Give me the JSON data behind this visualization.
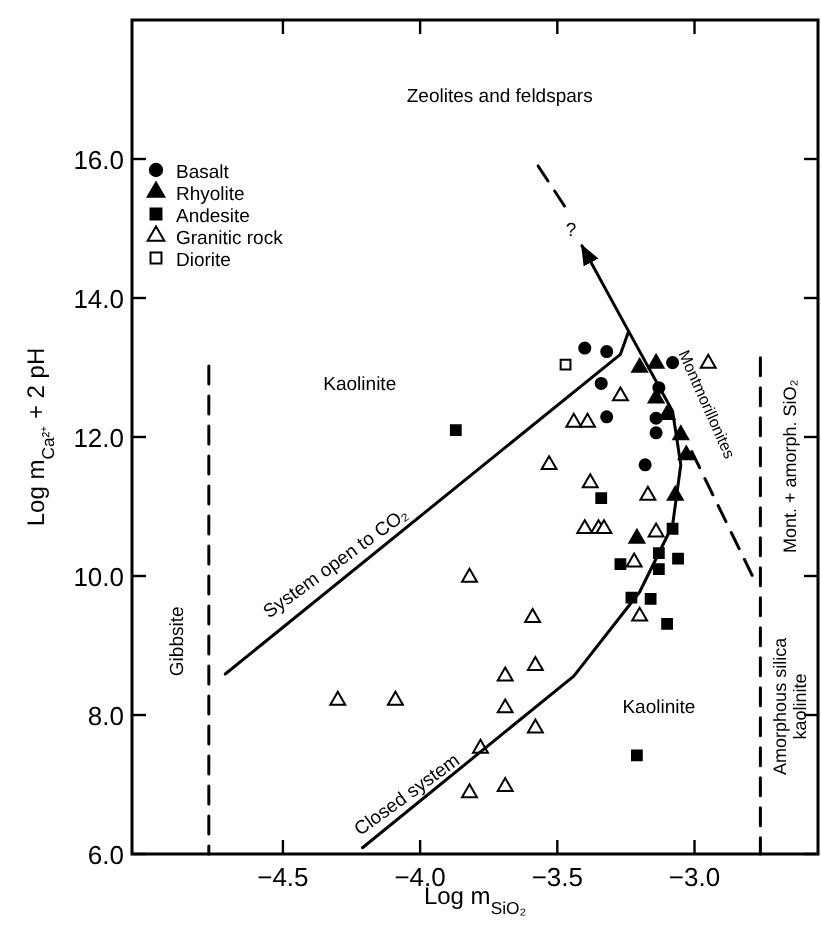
{
  "chart_data": {
    "type": "scatter",
    "xlabel": "Log m$_{SiO₂}$",
    "ylabel": "Log m$_{Ca²⁺}$ + 2 pH",
    "xlim": [
      -5.05,
      -2.55
    ],
    "ylim": [
      6,
      18
    ],
    "xticks": [
      {
        "value": -4.5,
        "label": "−4.5"
      },
      {
        "value": -4.0,
        "label": "−4.0"
      },
      {
        "value": -3.5,
        "label": "−3.5"
      },
      {
        "value": -3.0,
        "label": "−3.0"
      }
    ],
    "yticks": [
      {
        "value": 6,
        "label": "6.0"
      },
      {
        "value": 8,
        "label": "8.0"
      },
      {
        "value": 10,
        "label": "10.0"
      },
      {
        "value": 12,
        "label": "12.0"
      },
      {
        "value": 14,
        "label": "14.0"
      },
      {
        "value": 16,
        "label": "16.0"
      }
    ],
    "grid": false,
    "legend": "top left",
    "series": [
      {
        "name": "Basalt",
        "marker": "circle",
        "color": "#000000",
        "x": [
          -3.4,
          -3.32,
          -3.34,
          -3.32,
          -3.08,
          -3.13,
          -3.14,
          -3.14,
          -3.18
        ],
        "values": [
          13.28,
          13.23,
          12.77,
          12.29,
          13.07,
          12.71,
          12.27,
          12.06,
          11.6
        ]
      },
      {
        "name": "Rhyolite",
        "marker": "triangle",
        "color": "#000000",
        "x": [
          -3.2,
          -3.14,
          -3.14,
          -3.1,
          -3.05,
          -3.03,
          -3.07,
          -3.21
        ],
        "values": [
          13.0,
          13.06,
          12.56,
          12.32,
          12.03,
          11.74,
          11.16,
          10.54
        ]
      },
      {
        "name": "Andesite",
        "marker": "square",
        "color": "#000000",
        "x": [
          -3.87,
          -3.34,
          -3.08,
          -3.13,
          -3.27,
          -3.06,
          -3.13,
          -3.23,
          -3.16,
          -3.1,
          -3.21
        ],
        "values": [
          12.1,
          11.12,
          10.68,
          10.33,
          10.17,
          10.25,
          10.1,
          9.69,
          9.67,
          9.31,
          7.42
        ]
      },
      {
        "name": "Granitic rock",
        "marker": "triangle",
        "color": "#ffffff",
        "x": [
          -2.95,
          -3.27,
          -3.44,
          -3.39,
          -3.53,
          -3.38,
          -3.17,
          -3.4,
          -3.35,
          -3.33,
          -3.14,
          -3.22,
          -3.2,
          -3.82,
          -3.59,
          -3.58,
          -3.69,
          -4.3,
          -4.09,
          -3.69,
          -3.58,
          -3.78,
          -3.82,
          -3.69
        ],
        "values": [
          13.06,
          12.59,
          12.21,
          12.21,
          11.6,
          11.34,
          11.16,
          10.68,
          10.68,
          10.68,
          10.63,
          10.2,
          9.42,
          9.98,
          9.4,
          8.71,
          8.56,
          8.21,
          8.21,
          8.1,
          7.81,
          7.52,
          6.88,
          6.97
        ]
      },
      {
        "name": "Diorite",
        "marker": "square",
        "color": "#ffffff",
        "x": [
          -3.47
        ],
        "values": [
          13.04
        ]
      },
      {
        "type": "line",
        "marker": "none",
        "line_style": "solid",
        "color": "#000000",
        "x": [
          -4.71,
          -3.27,
          -3.24
        ],
        "values": [
          8.59,
          13.19,
          13.52
        ]
      },
      {
        "type": "line",
        "marker": "none",
        "line_style": "solid",
        "color": "#000000",
        "x": [
          -4.21,
          -3.44,
          -3.2,
          -3.08,
          -3.05,
          -3.08,
          -3.24,
          -3.41
        ],
        "values": [
          6.09,
          8.56,
          9.77,
          10.73,
          11.6,
          12.37,
          13.52,
          14.75
        ]
      },
      {
        "type": "line",
        "marker": "none",
        "line_style": "dashed",
        "color": "#000000",
        "x": [
          -3.57,
          -3.47
        ],
        "values": [
          15.9,
          15.3
        ]
      },
      {
        "type": "line",
        "marker": "none",
        "line_style": "dashed",
        "color": "#000000",
        "x": [
          -3.01,
          -2.79
        ],
        "values": [
          11.79,
          10.01
        ]
      },
      {
        "type": "line",
        "marker": "none",
        "line_style": "dashed",
        "color": "#000000",
        "x": [
          -4.77,
          -4.77
        ],
        "values": [
          13.02,
          6
        ]
      },
      {
        "type": "line",
        "marker": "none",
        "line_style": "dashed",
        "color": "#000000",
        "x": [
          -2.76,
          -2.76
        ],
        "values": [
          13.14,
          6
        ]
      }
    ],
    "annotations": [
      "Zeolites and feldspars",
      "?",
      "Kaolinite",
      "Montmorillonites",
      "System open to CO₂",
      "Gibbsite",
      "Kaolinite",
      "Closed system",
      "Mont. + amorph. SiO₂",
      "Amorphous silica\nkaolinite"
    ]
  }
}
